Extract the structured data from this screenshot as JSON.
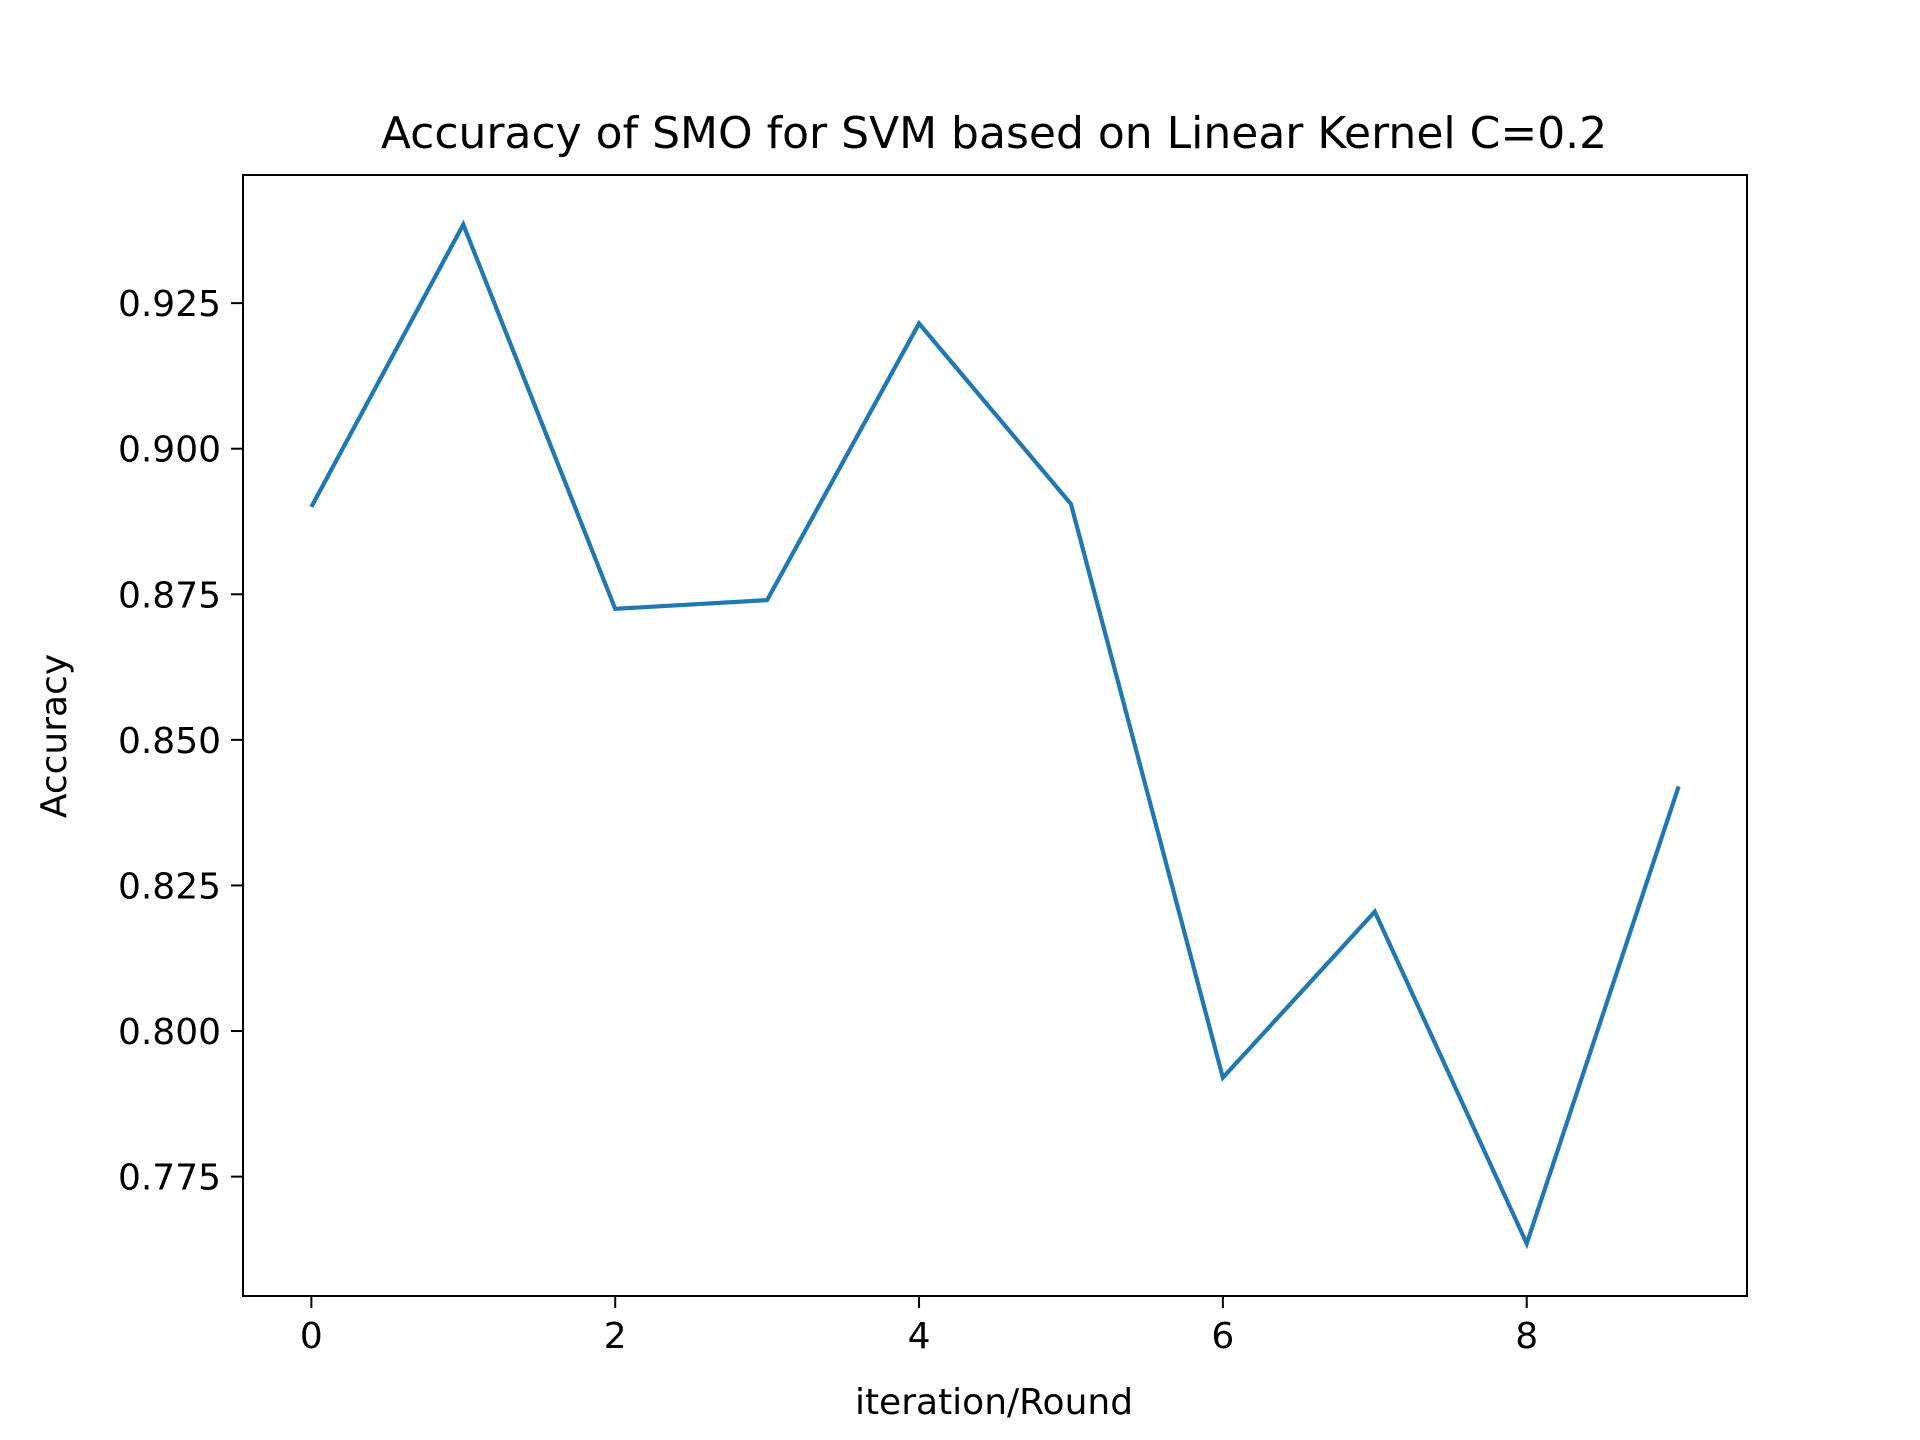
{
  "chart_data": {
    "type": "line",
    "title": "Accuracy of SMO for SVM based on Linear Kernel C=0.2",
    "xlabel": "iteration/Round",
    "ylabel": "Accuracy",
    "x": [
      0,
      1,
      2,
      3,
      4,
      5,
      6,
      7,
      8,
      9
    ],
    "series": [
      {
        "values": [
          0.89,
          0.9385,
          0.8725,
          0.874,
          0.9215,
          0.8905,
          0.792,
          0.8205,
          0.7635,
          0.842
        ],
        "color": "#1f77b4"
      }
    ],
    "xlim": [
      -0.45,
      9.45
    ],
    "ylim": [
      0.7545,
      0.947
    ],
    "xticks": [
      0,
      2,
      4,
      6,
      8
    ],
    "xtick_labels": [
      "0",
      "2",
      "4",
      "6",
      "8"
    ],
    "yticks": [
      0.775,
      0.8,
      0.825,
      0.85,
      0.875,
      0.9,
      0.925
    ],
    "ytick_labels": [
      "0.775",
      "0.800",
      "0.825",
      "0.850",
      "0.875",
      "0.900",
      "0.925"
    ],
    "grid": false,
    "legend": false
  }
}
